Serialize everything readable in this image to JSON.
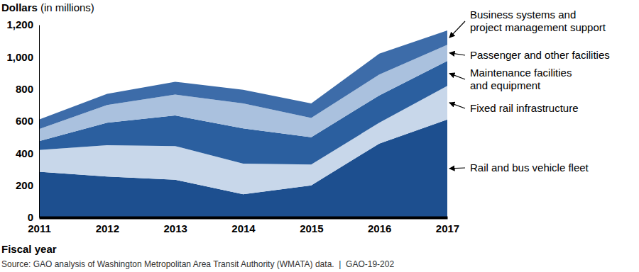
{
  "chart_data": {
    "type": "area",
    "stacked": true,
    "y_label": "Dollars (in millions)",
    "x_label": "Fiscal year",
    "source": "Source: GAO analysis of Washington Metropolitan Area Transit Authority (WMATA) data.  |  GAO-19-202",
    "x": [
      2011,
      2012,
      2013,
      2014,
      2015,
      2016,
      2017
    ],
    "xlim": [
      2011,
      2017
    ],
    "xticks": [
      2011,
      2012,
      2013,
      2014,
      2015,
      2016,
      2017
    ],
    "ylim": [
      0,
      1200
    ],
    "yticks": [
      0,
      200,
      400,
      600,
      800,
      {
        "value": 1000,
        "label": "1,000"
      },
      {
        "value": 1200,
        "label": "1,200"
      }
    ],
    "series": [
      {
        "name": "Rail and bus vehicle fleet",
        "color": "#1d4f8f",
        "values": [
          285,
          255,
          235,
          145,
          200,
          460,
          610
        ]
      },
      {
        "name": "Fixed rail infrastructure",
        "color": "#c8d7ea",
        "values": [
          135,
          195,
          210,
          190,
          130,
          130,
          210
        ]
      },
      {
        "name": "Maintenance facilities\nand equipment",
        "color": "#2b5f9f",
        "values": [
          55,
          140,
          190,
          220,
          170,
          170,
          155
        ]
      },
      {
        "name": "Passenger and other facilities",
        "color": "#aac1de",
        "values": [
          75,
          110,
          130,
          155,
          120,
          130,
          100
        ]
      },
      {
        "name": "Business systems and\nproject management support",
        "color": "#3d6ca9",
        "values": [
          60,
          70,
          80,
          85,
          90,
          130,
          90
        ]
      }
    ]
  }
}
